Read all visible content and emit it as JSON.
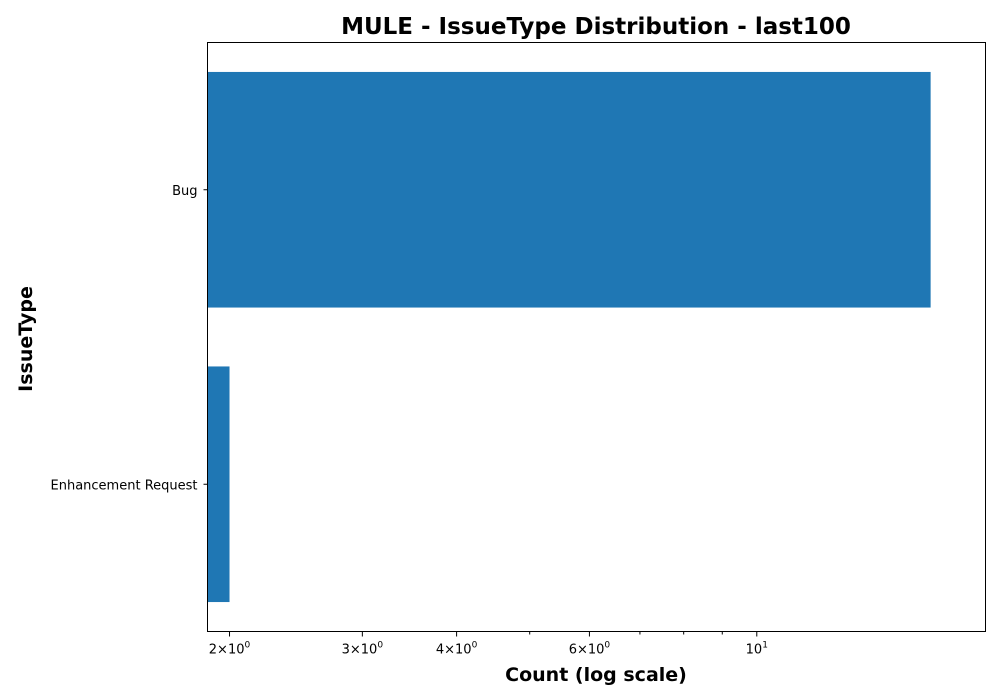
{
  "chart_data": {
    "type": "bar",
    "orientation": "horizontal",
    "title": "MULE - IssueType Distribution - last100",
    "xlabel": "Count (log scale)",
    "ylabel": "IssueType",
    "x_scale": "log",
    "xlim": [
      1.87,
      20.1
    ],
    "x_ticks": [
      {
        "value": 2,
        "base": "2",
        "sep": "×",
        "mant": "10",
        "exp": "0"
      },
      {
        "value": 3,
        "base": "3",
        "sep": "×",
        "mant": "10",
        "exp": "0"
      },
      {
        "value": 4,
        "base": "4",
        "sep": "×",
        "mant": "10",
        "exp": "0"
      },
      {
        "value": 6,
        "base": "6",
        "sep": "×",
        "mant": "10",
        "exp": "0"
      },
      {
        "value": 10,
        "base": "",
        "sep": "",
        "mant": "10",
        "exp": "1"
      }
    ],
    "x_minor_ticks": [
      5,
      7,
      8,
      9
    ],
    "categories": [
      "Bug",
      "Enhancement Request"
    ],
    "values": [
      17,
      2
    ],
    "bar_color": "#1f77b4",
    "grid": false,
    "legend": "none"
  }
}
